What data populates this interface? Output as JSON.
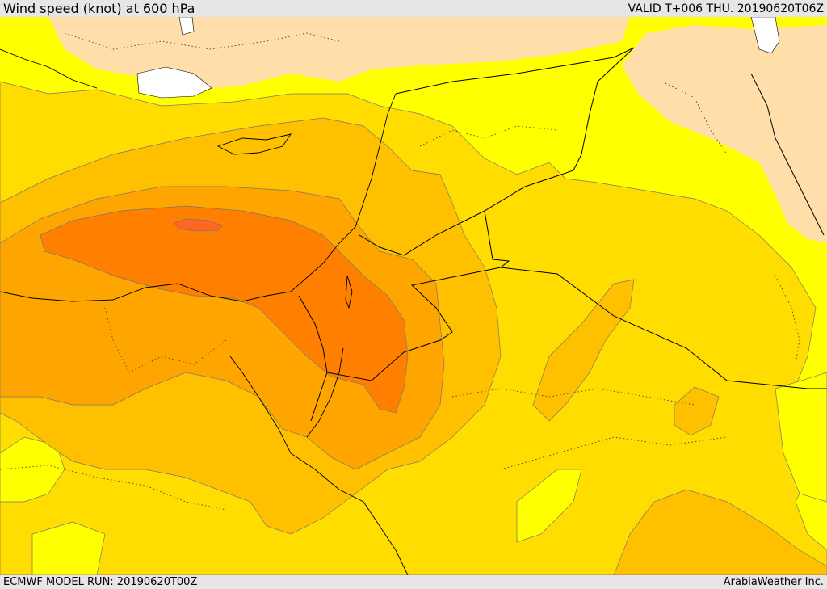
{
  "header": {
    "title": "Wind speed (knot) at 600 hPa",
    "valid": "VALID T+006 THU. 20190620T06Z"
  },
  "footer": {
    "model_run": "ECMWF MODEL RUN: 20190620T00Z",
    "credit": "ArabiaWeather Inc."
  },
  "map": {
    "field": "wind-speed",
    "colors": {
      "land_outside": "#ffdeaa",
      "band_1": "#ffff00",
      "band_2": "#ffdd00",
      "band_3": "#ffc000",
      "band_4": "#ffa500",
      "band_5": "#ff7f00",
      "band_6": "#ff6622",
      "water": "#ffffff"
    }
  }
}
